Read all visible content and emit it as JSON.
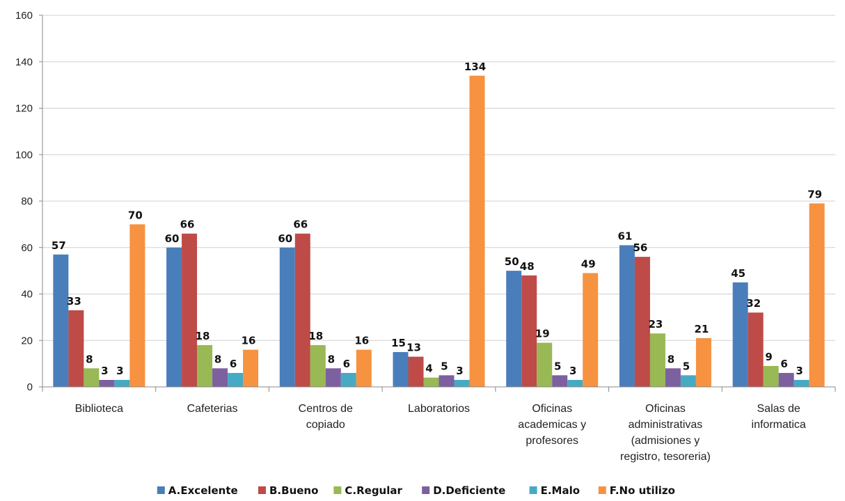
{
  "chart_data": {
    "type": "bar",
    "title": "",
    "xlabel": "",
    "ylabel": "",
    "ylim": [
      0,
      160
    ],
    "yticks": [
      0,
      20,
      40,
      60,
      80,
      100,
      120,
      140,
      160
    ],
    "grid": true,
    "legend_position": "bottom",
    "categories": [
      [
        "Biblioteca"
      ],
      [
        "Cafeterias"
      ],
      [
        "Centros de",
        "copiado"
      ],
      [
        "Laboratorios"
      ],
      [
        "Oficinas",
        "academicas y",
        "profesores"
      ],
      [
        "Oficinas",
        "administrativas",
        "(admisiones y",
        "registro, tesoreria)"
      ],
      [
        "Salas de",
        "informatica"
      ]
    ],
    "series": [
      {
        "name": "A.Excelente",
        "color": "#4a7ebb",
        "values": [
          57,
          60,
          60,
          15,
          50,
          61,
          45
        ]
      },
      {
        "name": "B.Bueno",
        "color": "#be4b48",
        "values": [
          33,
          66,
          66,
          13,
          48,
          56,
          32
        ]
      },
      {
        "name": "C.Regular",
        "color": "#98b954",
        "values": [
          8,
          18,
          18,
          4,
          19,
          23,
          9
        ]
      },
      {
        "name": "D.Deficiente",
        "color": "#7d60a0",
        "values": [
          3,
          8,
          8,
          5,
          5,
          8,
          6
        ]
      },
      {
        "name": "E.Malo",
        "color": "#46aac5",
        "values": [
          3,
          6,
          6,
          3,
          3,
          5,
          3
        ]
      },
      {
        "name": "F.No utilizo",
        "color": "#f69240",
        "values": [
          70,
          16,
          16,
          134,
          49,
          21,
          79
        ]
      }
    ]
  }
}
